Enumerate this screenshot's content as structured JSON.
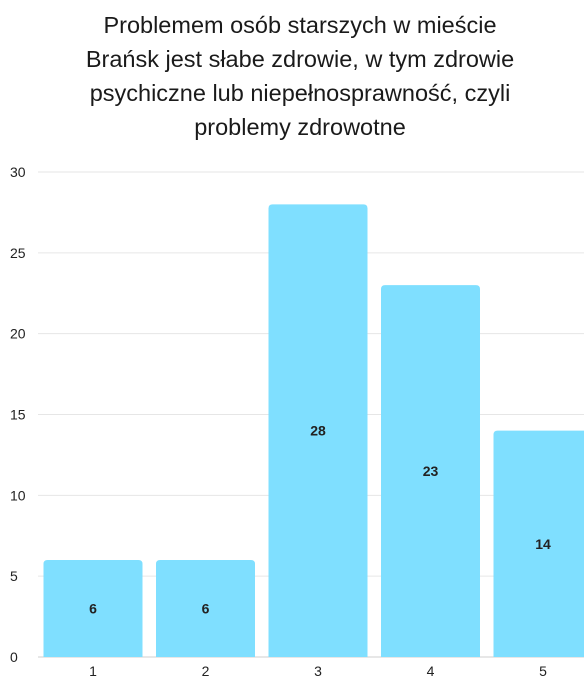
{
  "chart_data": {
    "type": "bar",
    "title_lines": [
      "Problemem osób starszych w mieście",
      "Brańsk jest słabe zdrowie, w tym zdrowie",
      "psychiczne lub niepełnosprawność, czyli",
      "problemy zdrowotne"
    ],
    "categories": [
      "1",
      "2",
      "3",
      "4",
      "5"
    ],
    "values": [
      6,
      6,
      28,
      23,
      14
    ],
    "ylim": [
      0,
      30
    ],
    "yticks": [
      0,
      5,
      10,
      15,
      20,
      25,
      30
    ],
    "xlabel": "",
    "ylabel": "",
    "grid": true,
    "bar_color": "#7fdfff",
    "grid_color": "#e6e6e6"
  }
}
